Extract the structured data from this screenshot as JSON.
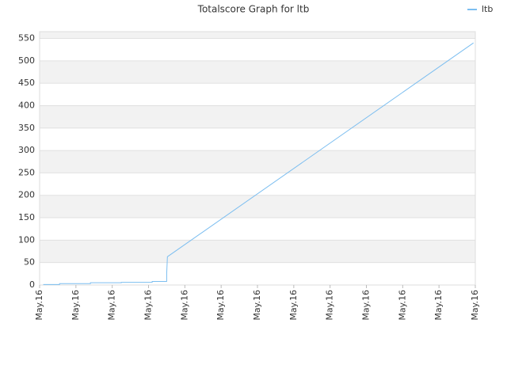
{
  "chart_data": {
    "type": "line",
    "title": "Totalscore Graph for ltb",
    "x": [
      0.1,
      0.55,
      0.55,
      1.4,
      1.4,
      2.25,
      2.25,
      3.1,
      3.1,
      3.5,
      3.5,
      3.52,
      11.95
    ],
    "series": [
      {
        "name": "ltb",
        "color": "#7cbef0",
        "values": [
          1,
          1,
          3,
          3,
          5,
          5,
          6,
          6,
          8,
          8,
          25,
          63,
          540
        ]
      }
    ],
    "xlim": [
      0,
      12
    ],
    "xticks": [
      {
        "value": 0,
        "label": "May.16"
      },
      {
        "value": 1,
        "label": "May.16"
      },
      {
        "value": 2,
        "label": "May.16"
      },
      {
        "value": 3,
        "label": "May.16"
      },
      {
        "value": 4,
        "label": "May.16"
      },
      {
        "value": 5,
        "label": "May.16"
      },
      {
        "value": 6,
        "label": "May.16"
      },
      {
        "value": 7,
        "label": "May.16"
      },
      {
        "value": 8,
        "label": "May.16"
      },
      {
        "value": 9,
        "label": "May.16"
      },
      {
        "value": 10,
        "label": "May.16"
      },
      {
        "value": 11,
        "label": "May.16"
      },
      {
        "value": 12,
        "label": "May.16"
      }
    ],
    "ylim": [
      0,
      565
    ],
    "yticks": [
      0,
      50,
      100,
      150,
      200,
      250,
      300,
      350,
      400,
      450,
      500,
      550
    ],
    "grid": true,
    "legend": "top-right"
  }
}
